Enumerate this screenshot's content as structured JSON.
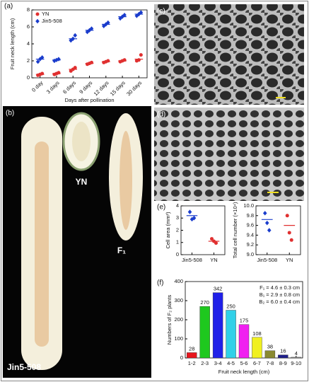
{
  "figure": {
    "panel_labels": [
      "(a)",
      "(b)",
      "(c)",
      "(d)",
      "(e)",
      "(f)"
    ],
    "photo_labels": [
      "YN",
      "F₁",
      "Jin5-508"
    ]
  },
  "chart_data": [
    {
      "type": "dot",
      "y_label": "Fruit neck length (cm)",
      "x_label": "Days after pollination",
      "categories": [
        "0 day",
        "3 days",
        "6 days",
        "9 days",
        "12 days",
        "15 days",
        "30 days"
      ],
      "ylim": [
        0,
        8
      ],
      "yticks": [
        0,
        2,
        4,
        6,
        8
      ],
      "legend": "upper left",
      "series": [
        {
          "name": "YN",
          "color": "#e03030",
          "marker": "circle",
          "values": [
            0.4,
            0.5,
            1.0,
            1.7,
            1.9,
            2.0,
            2.2
          ],
          "points": [
            [
              0.3,
              0.4,
              0.5
            ],
            [
              0.4,
              0.5,
              0.6
            ],
            [
              0.8,
              1.0,
              1.2
            ],
            [
              1.6,
              1.7,
              1.8
            ],
            [
              1.8,
              1.9,
              2.0
            ],
            [
              1.9,
              2.0,
              2.1
            ],
            [
              2.0,
              2.1,
              2.7
            ]
          ]
        },
        {
          "name": "Jin5-508",
          "color": "#1a3ccc",
          "marker": "diamond",
          "values": [
            2.2,
            2.1,
            4.6,
            5.6,
            6.3,
            7.2,
            7.5
          ],
          "points": [
            [
              1.9,
              2.2,
              2.4
            ],
            [
              2.0,
              2.1,
              2.2
            ],
            [
              4.4,
              4.6,
              5.0
            ],
            [
              5.4,
              5.6,
              5.8
            ],
            [
              6.1,
              6.3,
              6.5
            ],
            [
              7.0,
              7.2,
              7.4
            ],
            [
              7.3,
              7.5,
              7.7
            ]
          ]
        }
      ]
    },
    {
      "type": "dot",
      "y_label": "Cell area (mm²)",
      "categories": [
        "Jin5-508",
        "YN"
      ],
      "ylim": [
        0,
        4
      ],
      "yticks": [
        0,
        1,
        2,
        3,
        4
      ],
      "colors": [
        "#1a3ccc",
        "#e03030"
      ],
      "markers": [
        "diamond",
        "circle"
      ],
      "values": [
        3.2,
        1.1
      ],
      "points": [
        [
          3.5,
          2.9,
          3.0
        ],
        [
          1.3,
          1.1,
          0.95
        ]
      ]
    },
    {
      "type": "dot",
      "y_label": "Total cell number (×10⁴)",
      "categories": [
        "Jin5-508",
        "YN"
      ],
      "ylim": [
        9.0,
        10.0
      ],
      "yticks": [
        {
          "value": 9.0,
          "label": "9.0"
        },
        9.2,
        9.4,
        9.6,
        9.8,
        {
          "value": 10.0,
          "label": "10.0"
        }
      ],
      "colors": [
        "#1a3ccc",
        "#e03030"
      ],
      "markers": [
        "diamond",
        "circle"
      ],
      "values": [
        9.72,
        9.6
      ],
      "points": [
        [
          9.85,
          9.65,
          9.5
        ],
        [
          9.8,
          9.45,
          9.3
        ]
      ]
    },
    {
      "type": "bar",
      "y_label": "Numbers of F₂ plants",
      "x_label": "Fruit neck length (cm)",
      "categories": [
        "1-2",
        "2-3",
        "3-4",
        "4-5",
        "5-6",
        "6-7",
        "7-8",
        "8-9",
        "9-10"
      ],
      "values": [
        28,
        270,
        342,
        250,
        175,
        108,
        38,
        16,
        4
      ],
      "colors": [
        "#e8141c",
        "#1ec81e",
        "#2020e8",
        "#30d0e8",
        "#f020f0",
        "#f0f020",
        "#8a8a30",
        "#20208a",
        "#909090"
      ],
      "ylim": [
        0,
        400
      ],
      "yticks": [
        0,
        100,
        200,
        300,
        400
      ],
      "annotations": [
        "F₁ = 4.6 ± 0.3 cm",
        "B₁ = 2.9 ± 0.8 cm",
        "B₂ = 6.0 ± 0.4 cm"
      ]
    }
  ]
}
